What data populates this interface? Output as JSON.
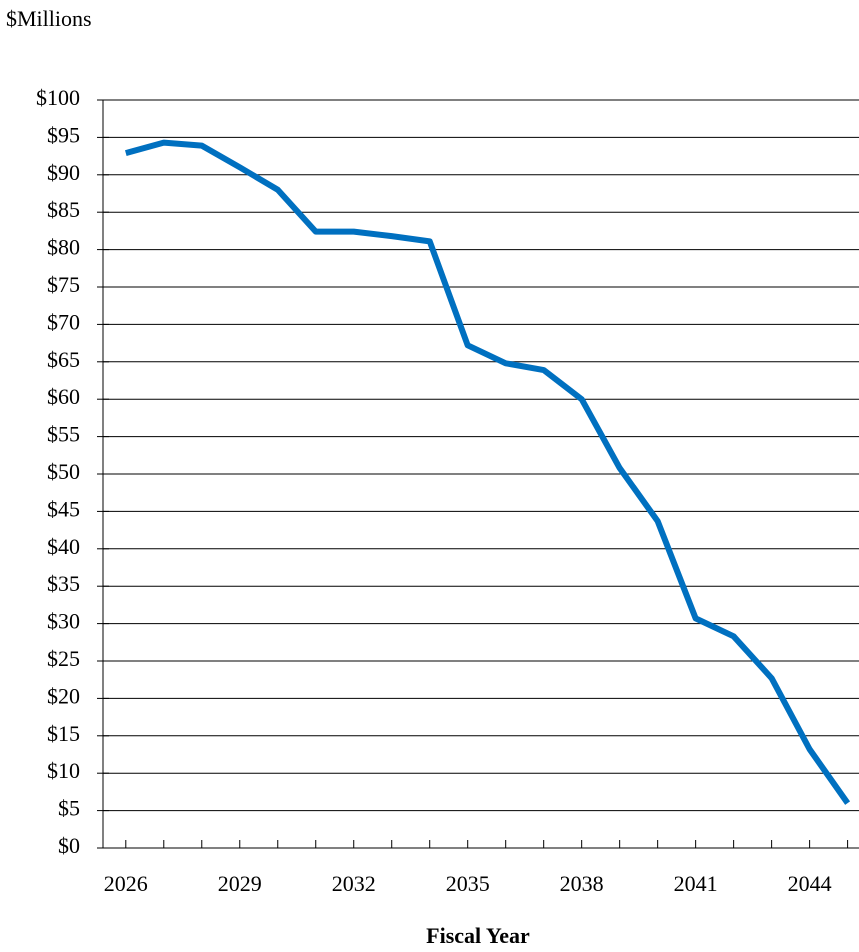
{
  "chart_data": {
    "type": "line",
    "title": "$Millions",
    "x_label": "Fiscal Year",
    "x": [
      2026,
      2027,
      2028,
      2029,
      2030,
      2031,
      2032,
      2033,
      2034,
      2035,
      2036,
      2037,
      2038,
      2039,
      2040,
      2041,
      2042,
      2043,
      2044,
      2045
    ],
    "series": [
      {
        "name": null,
        "color": "#0070c0",
        "values": [
          92.9,
          94.3,
          93.9,
          91.0,
          88.0,
          82.4,
          82.4,
          81.8,
          81.1,
          67.2,
          64.8,
          63.9,
          60.0,
          50.8,
          43.7,
          30.7,
          28.3,
          22.7,
          13.2,
          6.0
        ]
      }
    ],
    "xlim": [
      2025.4,
      2045.3
    ],
    "xticks": [
      2026,
      2029,
      2032,
      2035,
      2038,
      2041,
      2044
    ],
    "ylim": [
      0,
      100
    ],
    "yticks": [
      {
        "value": 0,
        "label": "$0"
      },
      {
        "value": 5,
        "label": "$5"
      },
      {
        "value": 10,
        "label": "$10"
      },
      {
        "value": 15,
        "label": "$15"
      },
      {
        "value": 20,
        "label": "$20"
      },
      {
        "value": 25,
        "label": "$25"
      },
      {
        "value": 30,
        "label": "$30"
      },
      {
        "value": 35,
        "label": "$35"
      },
      {
        "value": 40,
        "label": "$40"
      },
      {
        "value": 45,
        "label": "$45"
      },
      {
        "value": 50,
        "label": "$50"
      },
      {
        "value": 55,
        "label": "$55"
      },
      {
        "value": 60,
        "label": "$60"
      },
      {
        "value": 65,
        "label": "$65"
      },
      {
        "value": 70,
        "label": "$70"
      },
      {
        "value": 75,
        "label": "$75"
      },
      {
        "value": 80,
        "label": "$80"
      },
      {
        "value": 85,
        "label": "$85"
      },
      {
        "value": 90,
        "label": "$90"
      },
      {
        "value": 95,
        "label": "$95"
      },
      {
        "value": 100,
        "label": "$100"
      }
    ],
    "grid": true
  }
}
